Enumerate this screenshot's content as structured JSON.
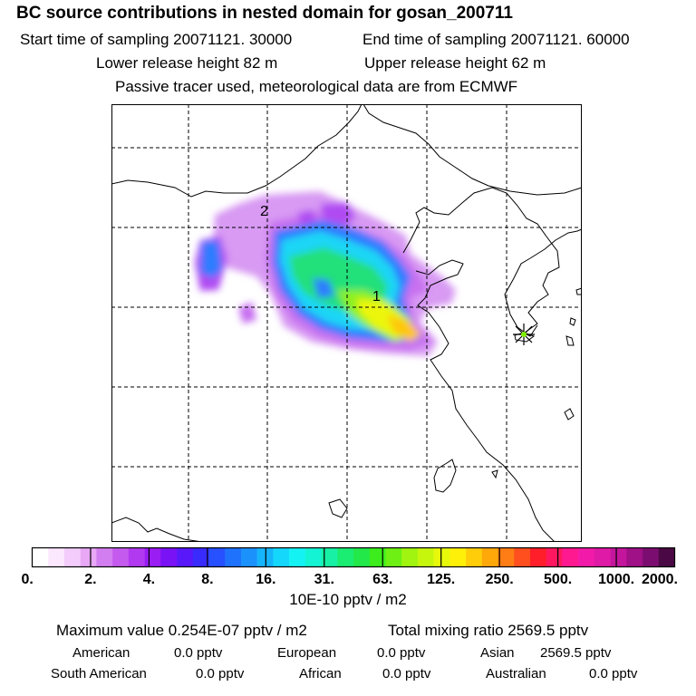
{
  "header": {
    "title": "BC  source contributions in nested domain for gosan_200711",
    "start": "Start time of sampling 20071121. 30000",
    "end": "End time of sampling 20071121. 60000",
    "lower": "Lower release height   82 m",
    "upper": "Upper release height   62 m",
    "tracer": "Passive tracer used, meteorological data are from ECMWF"
  },
  "map": {
    "markers": [
      {
        "label": "1"
      },
      {
        "label": "2"
      }
    ],
    "receptor": "asterisk-marker",
    "colors": {
      "coast": "#000000",
      "grid": "#000000"
    }
  },
  "colorbar": {
    "ticks": [
      "0.",
      "2.",
      "4.",
      "8.",
      "16.",
      "31.",
      "63.",
      "125.",
      "250.",
      "500.",
      "1000.",
      "2000."
    ],
    "colors": [
      "#ffffff",
      "#fbe8ff",
      "#f3ccfb",
      "#e8a8f6",
      "#d37ef0",
      "#c45aee",
      "#b13af0",
      "#9a1df3",
      "#7a12f6",
      "#5818fa",
      "#3a2bfd",
      "#2750ff",
      "#1f72fc",
      "#1b92fb",
      "#16b5fb",
      "#15d7fb",
      "#14f2f3",
      "#14f3d3",
      "#17f0a5",
      "#1bec72",
      "#22e84a",
      "#3cec1c",
      "#6ef014",
      "#a0f40f",
      "#c7f60d",
      "#e7f80b",
      "#fff00a",
      "#ffcd0a",
      "#ffa80a",
      "#ff7d14",
      "#ff4f1f",
      "#ff1e2a",
      "#ff1860",
      "#ff1991",
      "#f21aa8",
      "#de1aa6",
      "#c4169c",
      "#a01087",
      "#7c0d70",
      "#4a0844"
    ],
    "unit": "10E-10 pptv / m2"
  },
  "summary": {
    "max": "Maximum value  0.254E-07 pptv / m2",
    "total": "Total mixing ratio     2569.5 pptv",
    "rows": [
      [
        {
          "label": "American",
          "value": "0.0 pptv"
        },
        {
          "label": "European",
          "value": "0.0 pptv"
        },
        {
          "label": "Asian",
          "value": "2569.5 pptv"
        }
      ],
      [
        {
          "label": "South American",
          "value": "0.0 pptv"
        },
        {
          "label": "African",
          "value": "0.0 pptv"
        },
        {
          "label": "Australian",
          "value": "0.0 pptv"
        }
      ]
    ]
  }
}
